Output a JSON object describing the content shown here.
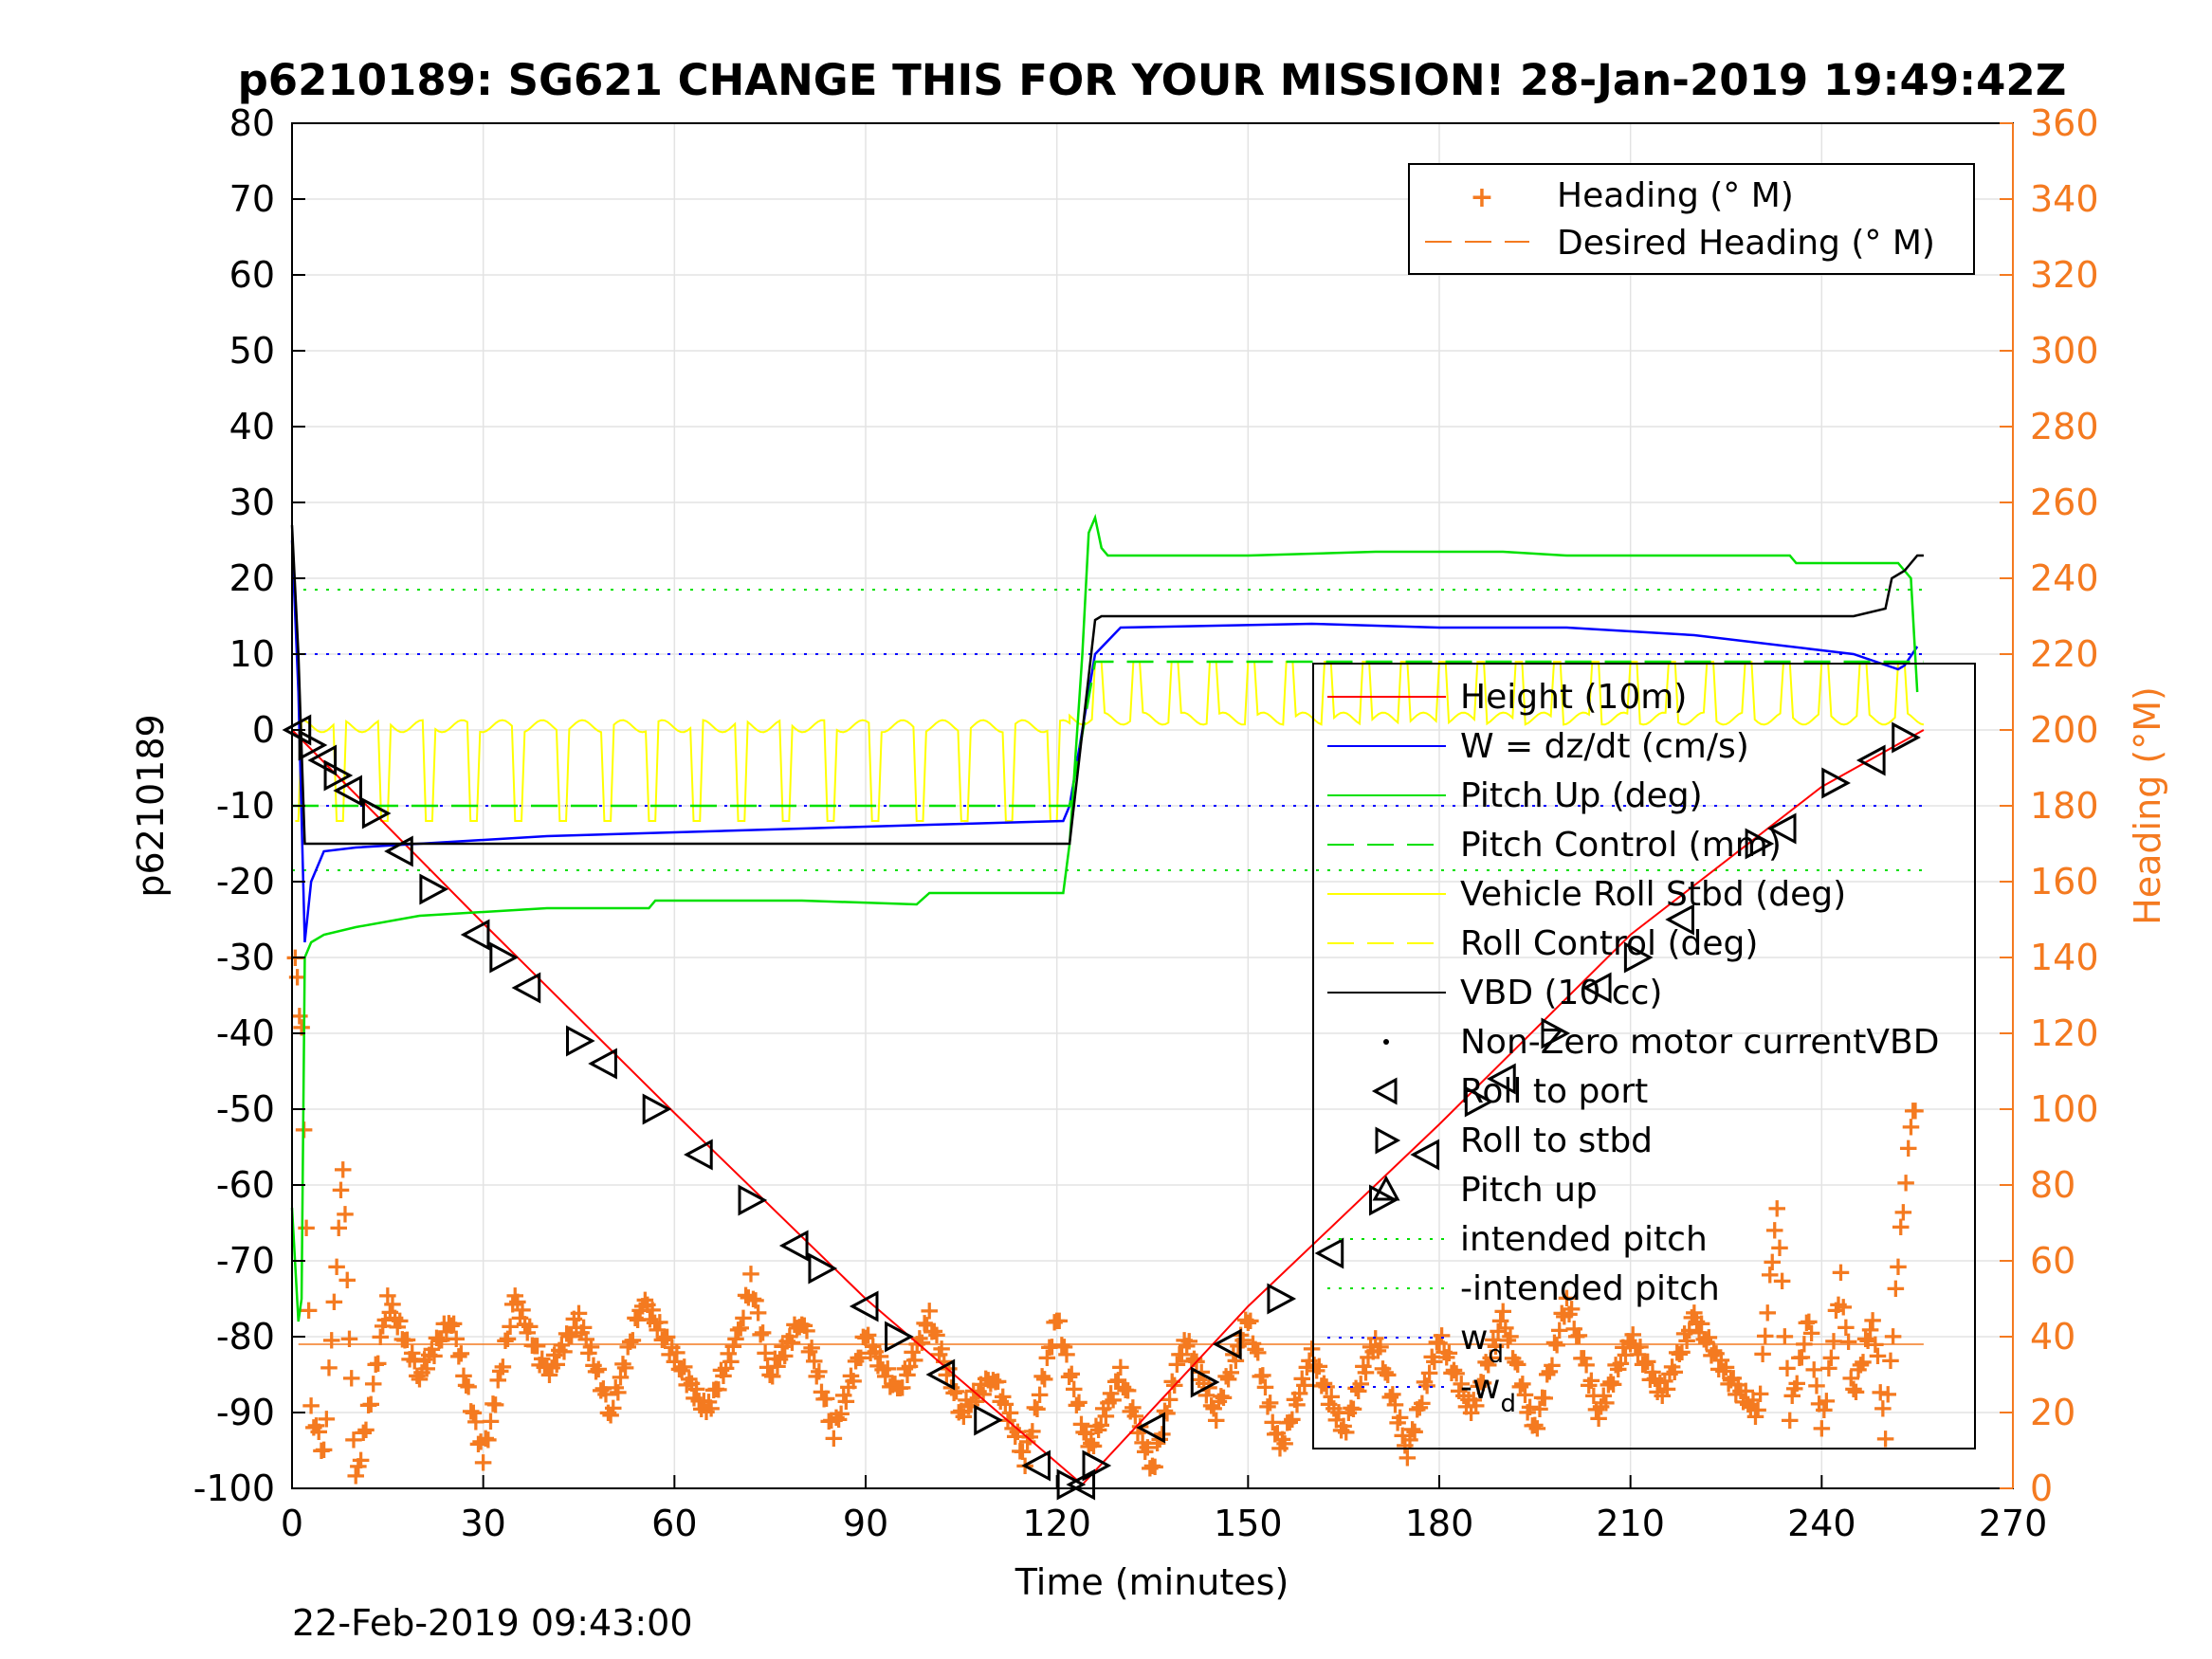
{
  "chart_data": {
    "type": "line",
    "title": "p6210189: SG621 CHANGE THIS FOR YOUR MISSION! 28-Jan-2019 19:49:42Z",
    "xlabel": "Time (minutes)",
    "ylabel": "p6210189",
    "y2label": "Heading (°M)",
    "footer": "22-Feb-2019 09:43:00",
    "xlim": [
      0,
      270
    ],
    "ylim": [
      -100,
      80
    ],
    "y2lim": [
      0,
      360
    ],
    "x_ticks": [
      "0",
      "30",
      "60",
      "90",
      "120",
      "150",
      "180",
      "210",
      "240",
      "270"
    ],
    "y_ticks": [
      "80",
      "70",
      "60",
      "50",
      "40",
      "30",
      "20",
      "10",
      "0",
      "-10",
      "-20",
      "-30",
      "-40",
      "-50",
      "-60",
      "-70",
      "-80",
      "-90",
      "-100"
    ],
    "y2_ticks": [
      "360",
      "340",
      "320",
      "300",
      "280",
      "260",
      "240",
      "220",
      "200",
      "180",
      "160",
      "140",
      "120",
      "100",
      "80",
      "60",
      "40",
      "20",
      "0"
    ],
    "grid": true,
    "legend_main": {
      "placement": "right-center",
      "entries": [
        "Height (10m)",
        "W = dz/dt (cm/s)",
        "Pitch Up (deg)",
        "Pitch Control (mm)",
        "Vehicle Roll Stbd (deg)",
        "Roll Control (deg)",
        "VBD (10 cc)",
        "Non-Zero motor currentVBD",
        "Roll to port",
        "Roll to stbd",
        "Pitch up",
        "intended pitch",
        "-intended pitch",
        "w",
        "-w"
      ],
      "subscript": "d"
    },
    "legend_heading": {
      "placement": "top-right",
      "entries": [
        "Heading (° M)",
        "Desired Heading (° M)"
      ]
    },
    "colors": {
      "height": "#ff0000",
      "w": "#0000ff",
      "pitch": "#00e000",
      "roll": "#ffff00",
      "vbd": "#000000",
      "heading": "#f47a20"
    },
    "reference_lines": {
      "intended_pitch": 18.5,
      "neg_intended_pitch": -18.5,
      "w_d": 10,
      "neg_w_d": -10,
      "desired_heading": 38
    },
    "series": [
      {
        "name": "Height (10m)",
        "axis": "left",
        "style": "line",
        "x": [
          0,
          30,
          60,
          90,
          124,
          150,
          180,
          210,
          240,
          256
        ],
        "y": [
          0,
          -25.5,
          -50.5,
          -75,
          -99.5,
          -76,
          -52,
          -27,
          -7.5,
          0
        ]
      },
      {
        "name": "W = dz/dt (cm/s)",
        "axis": "left",
        "style": "line",
        "x": [
          0,
          1,
          2,
          3,
          5,
          10,
          20,
          40,
          60,
          80,
          100,
          121,
          122,
          126,
          130,
          160,
          180,
          200,
          220,
          240,
          245,
          252,
          253,
          255
        ],
        "y": [
          25,
          5,
          -28,
          -20,
          -16,
          -15.5,
          -15,
          -14,
          -13.5,
          -13,
          -12.5,
          -12,
          -10,
          10,
          13.5,
          14,
          13.5,
          13.5,
          12.5,
          10.5,
          10,
          8,
          8.5,
          11
        ]
      },
      {
        "name": "Pitch Up (deg)",
        "axis": "left",
        "style": "line",
        "x": [
          0,
          1,
          1.5,
          2,
          3,
          5,
          10,
          20,
          40,
          56,
          57,
          80,
          98,
          100,
          121,
          122,
          124,
          125,
          126,
          127,
          128,
          130,
          150,
          170,
          190,
          200,
          235,
          236,
          252,
          253,
          254,
          255
        ],
        "y": [
          -63,
          -78,
          -75,
          -30,
          -28,
          -27,
          -26,
          -24.5,
          -23.5,
          -23.5,
          -22.5,
          -22.5,
          -23,
          -21.5,
          -21.5,
          -15,
          10,
          26,
          28,
          24,
          23,
          23,
          23,
          23.5,
          23.5,
          23,
          23,
          22,
          22,
          21,
          20,
          5
        ]
      },
      {
        "name": "Pitch Control (mm)",
        "axis": "left",
        "style": "dashed",
        "x": [
          0,
          122,
          126,
          245,
          256
        ],
        "y": [
          -10,
          -10,
          9,
          9,
          9
        ]
      },
      {
        "name": "VBD (10 cc)",
        "axis": "left",
        "style": "line",
        "x": [
          0,
          1,
          2,
          3,
          121,
          122,
          126,
          127,
          245,
          250,
          251,
          253,
          254,
          255,
          256
        ],
        "y": [
          27,
          10,
          -15,
          -15,
          -15,
          -15,
          14.5,
          15,
          15,
          16,
          20,
          21,
          22,
          23,
          23
        ]
      },
      {
        "name": "Vehicle Roll Stbd (deg)",
        "axis": "left",
        "style": "line",
        "base": [
          0,
          2
        ],
        "dip": -12,
        "x": [
          0,
          260
        ]
      },
      {
        "name": "Heading (° M)",
        "axis": "right",
        "style": "marker",
        "x": [
          0.5,
          1.5,
          3,
          5,
          7,
          8,
          9,
          10,
          12,
          15,
          20,
          25,
          30,
          35,
          40,
          45,
          50,
          55,
          60,
          65,
          70,
          72,
          75,
          80,
          85,
          90,
          95,
          100,
          105,
          110,
          115,
          120,
          125,
          130,
          135,
          140,
          145,
          150,
          155,
          160,
          165,
          170,
          175,
          180,
          185,
          190,
          195,
          200,
          205,
          210,
          215,
          220,
          225,
          230,
          233,
          235,
          238,
          240,
          243,
          245,
          248,
          250,
          252,
          254,
          255
        ],
        "y": [
          140,
          120,
          20,
          10,
          60,
          86,
          40,
          2,
          20,
          50,
          30,
          45,
          8,
          50,
          30,
          45,
          20,
          50,
          35,
          20,
          40,
          55,
          30,
          45,
          15,
          40,
          25,
          45,
          20,
          30,
          8,
          45,
          10,
          30,
          5,
          40,
          20,
          45,
          10,
          35,
          15,
          40,
          10,
          40,
          20,
          45,
          15,
          50,
          20,
          40,
          25,
          45,
          30,
          20,
          75,
          20,
          45,
          15,
          55,
          25,
          45,
          15,
          60,
          95,
          105
        ]
      }
    ],
    "glider_markers": {
      "roll_to_port_labels": [
        "Roll to port"
      ],
      "x": [
        1,
        3,
        5,
        7,
        9,
        13,
        17,
        22,
        29,
        33,
        37,
        45,
        49,
        57,
        64,
        72,
        79,
        83,
        90,
        95,
        102,
        109,
        117,
        122,
        124,
        126,
        135,
        143,
        147,
        155,
        163,
        171,
        178,
        186,
        190,
        198,
        205,
        211,
        218,
        230,
        234,
        242,
        248,
        253
      ],
      "y": [
        0,
        -2,
        -4,
        -6,
        -8,
        -11,
        -16,
        -21,
        -27,
        -30,
        -34,
        -41,
        -44,
        -50,
        -56,
        -62,
        -68,
        -71,
        -76,
        -80,
        -85,
        -91,
        -97,
        -99.5,
        -99.5,
        -97,
        -92,
        -86,
        -81,
        -75,
        -69,
        -62,
        -56,
        -49,
        -46,
        -40,
        -34,
        -30,
        -25,
        -15,
        -13,
        -7,
        -4,
        -1
      ]
    }
  }
}
